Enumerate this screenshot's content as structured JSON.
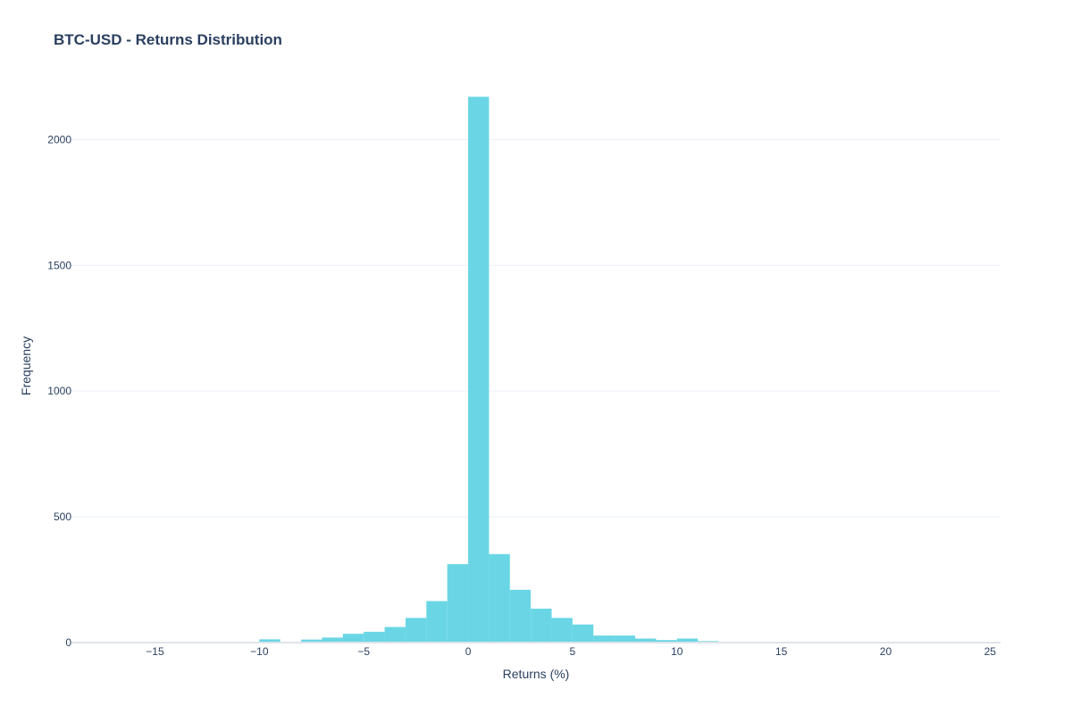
{
  "chart_data": {
    "type": "bar",
    "title": "BTC-USD - Returns Distribution",
    "xlabel": "Returns (%)",
    "ylabel": "Frequency",
    "xlim": [
      -19,
      25.5
    ],
    "ylim": [
      0,
      2200
    ],
    "x_ticks": [
      -15,
      -10,
      -5,
      0,
      5,
      10,
      15,
      20,
      25
    ],
    "x_tick_labels": [
      "−15",
      "−10",
      "−5",
      "0",
      "5",
      "10",
      "15",
      "20",
      "25"
    ],
    "y_ticks": [
      0,
      500,
      1000,
      1500,
      2000
    ],
    "y_tick_labels": [
      "0",
      "500",
      "1000",
      "1500",
      "2000"
    ],
    "grid": true,
    "bar_color": "#5dd3e3",
    "bins": [
      {
        "x0": -15,
        "x1": -14,
        "value": 1
      },
      {
        "x0": -14,
        "x1": -13,
        "value": 2
      },
      {
        "x0": -13,
        "x1": -12,
        "value": 2
      },
      {
        "x0": -12,
        "x1": -11,
        "value": 2
      },
      {
        "x0": -11,
        "x1": -10,
        "value": 2
      },
      {
        "x0": -10,
        "x1": -9,
        "value": 13
      },
      {
        "x0": -9,
        "x1": -8,
        "value": 3
      },
      {
        "x0": -8,
        "x1": -7,
        "value": 12
      },
      {
        "x0": -7,
        "x1": -6,
        "value": 20
      },
      {
        "x0": -6,
        "x1": -5,
        "value": 35
      },
      {
        "x0": -5,
        "x1": -4,
        "value": 43
      },
      {
        "x0": -4,
        "x1": -3,
        "value": 62
      },
      {
        "x0": -3,
        "x1": -2,
        "value": 98
      },
      {
        "x0": -2,
        "x1": -1,
        "value": 165
      },
      {
        "x0": -1,
        "x1": 0,
        "value": 312
      },
      {
        "x0": 0,
        "x1": 1,
        "value": 2170
      },
      {
        "x0": 1,
        "x1": 2,
        "value": 352
      },
      {
        "x0": 2,
        "x1": 3,
        "value": 210
      },
      {
        "x0": 3,
        "x1": 4,
        "value": 135
      },
      {
        "x0": 4,
        "x1": 5,
        "value": 98
      },
      {
        "x0": 5,
        "x1": 6,
        "value": 72
      },
      {
        "x0": 6,
        "x1": 7,
        "value": 28
      },
      {
        "x0": 7,
        "x1": 8,
        "value": 28
      },
      {
        "x0": 8,
        "x1": 9,
        "value": 16
      },
      {
        "x0": 9,
        "x1": 10,
        "value": 10
      },
      {
        "x0": 10,
        "x1": 11,
        "value": 16
      },
      {
        "x0": 11,
        "x1": 12,
        "value": 6
      },
      {
        "x0": 12,
        "x1": 13,
        "value": 2
      },
      {
        "x0": 13,
        "x1": 14,
        "value": 2
      },
      {
        "x0": 14,
        "x1": 15,
        "value": 0
      },
      {
        "x0": 15,
        "x1": 16,
        "value": 3
      }
    ]
  }
}
